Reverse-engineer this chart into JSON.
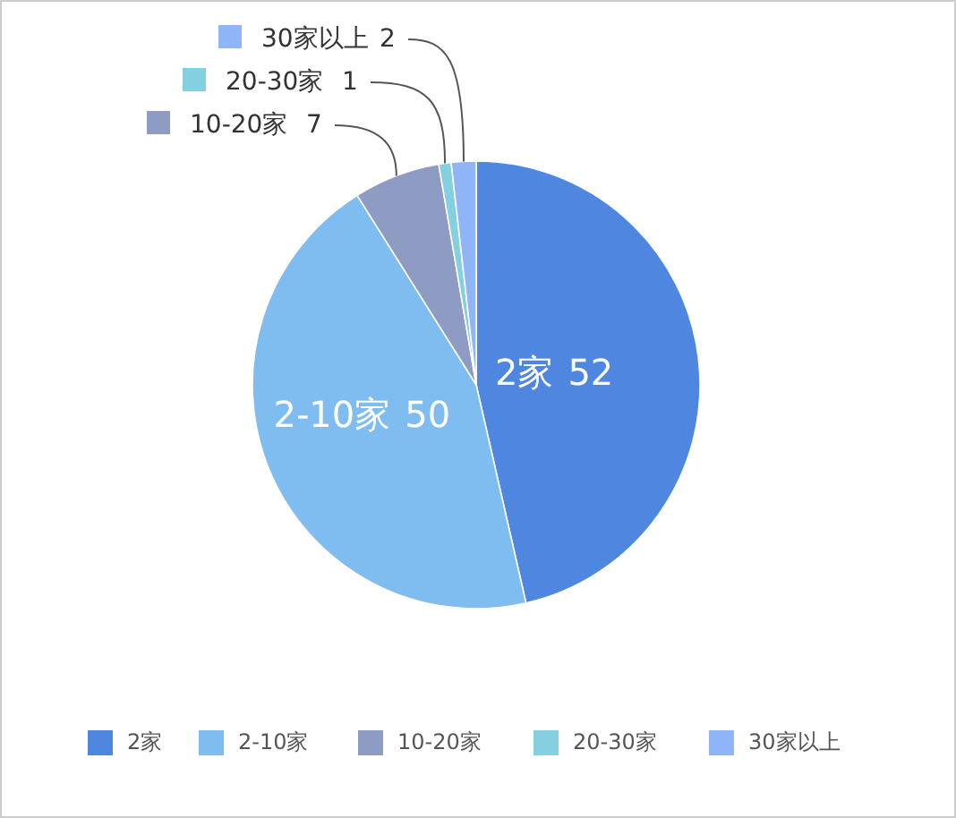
{
  "chart_data": {
    "type": "pie",
    "categories": [
      "2家",
      "2-10家",
      "10-20家",
      "20-30家",
      "30家以上"
    ],
    "values": [
      52,
      50,
      7,
      1,
      2
    ],
    "colors": [
      "#4f86e0",
      "#7fbdf0",
      "#8e9cc4",
      "#84cfe0",
      "#8fb4f8"
    ],
    "data_labels": true,
    "legend": "bottom"
  }
}
